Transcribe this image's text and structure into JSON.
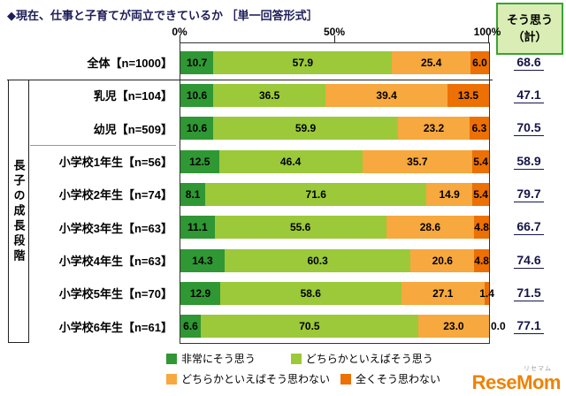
{
  "title": "◆現在、仕事と子育てが両立できているか ［単一回答形式］",
  "total_header": {
    "line1": "そう思う",
    "line2": "（計）"
  },
  "axis": {
    "ticks": [
      "0%",
      "50%",
      "100%"
    ]
  },
  "group_label": "長子の成長段階",
  "legend": [
    {
      "label": "非常にそう思う",
      "color": "#2f9733"
    },
    {
      "label": "どちらかといえばそう思う",
      "color": "#9bc93a"
    },
    {
      "label": "どちらかといえばそう思わない",
      "color": "#f7a83e"
    },
    {
      "label": "全くそう思わない",
      "color": "#ec7004"
    }
  ],
  "chart_data": {
    "type": "bar",
    "stacked": true,
    "orientation": "horizontal",
    "title": "現在、仕事と子育てが両立できているか［単一回答形式］",
    "xlim": [
      0,
      100
    ],
    "legend_position": "bottom",
    "categories": [
      "全体【n=1000】",
      "乳児【n=104】",
      "幼児【n=509】",
      "小学校1年生【n=56】",
      "小学校2年生【n=74】",
      "小学校3年生【n=63】",
      "小学校4年生【n=63】",
      "小学校5年生【n=70】",
      "小学校6年生【n=61】"
    ],
    "series": [
      {
        "name": "非常にそう思う",
        "color": "#2f9733",
        "values": [
          10.7,
          10.6,
          10.6,
          12.5,
          8.1,
          11.1,
          14.3,
          12.9,
          6.6
        ]
      },
      {
        "name": "どちらかといえばそう思う",
        "color": "#9bc93a",
        "values": [
          57.9,
          36.5,
          59.9,
          46.4,
          71.6,
          55.6,
          60.3,
          58.6,
          70.5
        ]
      },
      {
        "name": "どちらかといえばそう思わない",
        "color": "#f7a83e",
        "values": [
          25.4,
          39.4,
          23.2,
          35.7,
          14.9,
          28.6,
          20.6,
          27.1,
          23.0
        ]
      },
      {
        "name": "全くそう思わない",
        "color": "#ec7004",
        "values": [
          6.0,
          13.5,
          6.3,
          5.4,
          5.4,
          4.8,
          4.8,
          1.4,
          0.0
        ]
      }
    ],
    "totals_agree": [
      68.6,
      47.1,
      70.5,
      58.9,
      79.7,
      66.7,
      74.6,
      71.5,
      77.1
    ],
    "totals_agree_label": "そう思う（計）"
  },
  "logo": {
    "name": "ReseMom",
    "kana": "リセマム"
  }
}
